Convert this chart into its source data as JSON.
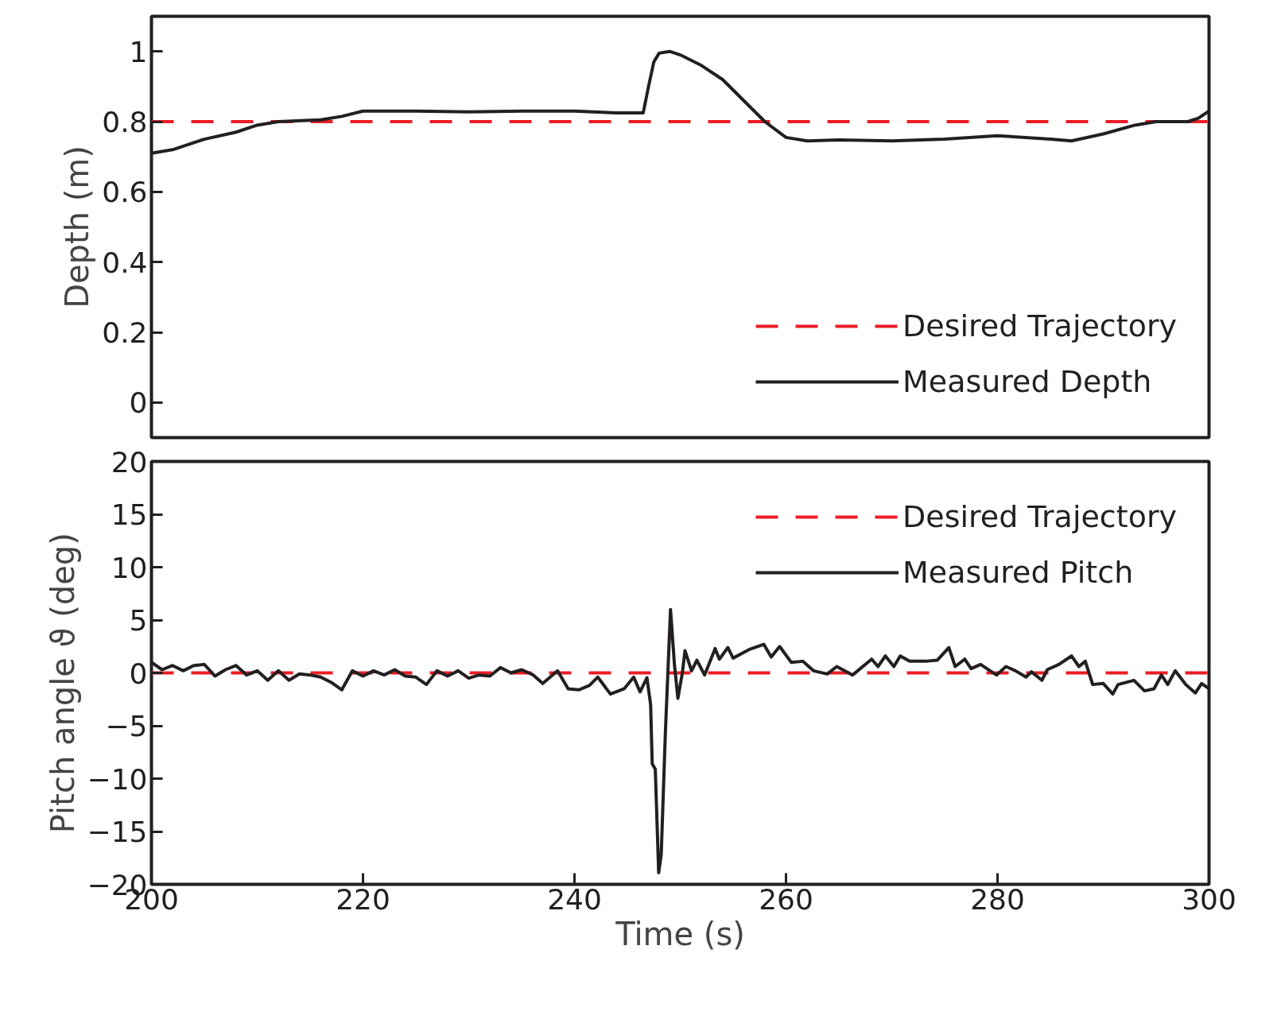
{
  "chart_data": [
    {
      "type": "line",
      "ylabel": "Depth (m)",
      "xlim": [
        200,
        300
      ],
      "ylim": [
        -0.1,
        1.1
      ],
      "yticks": [
        0,
        0.2,
        0.4,
        0.6,
        0.8,
        1
      ],
      "tick_labels": "y",
      "legend": "bottom right",
      "grid": false,
      "series": [
        {
          "name": "Desired Trajectory",
          "color": "#ed1c24",
          "line_style": "dashed",
          "x": [
            200,
            300
          ],
          "values": [
            0.8,
            0.8
          ]
        },
        {
          "name": "Measured Depth",
          "color": "#231f20",
          "line_style": "solid",
          "x": [
            200,
            202,
            205,
            208,
            210,
            212,
            216,
            218,
            220,
            225,
            230,
            235,
            240,
            244,
            246.5,
            247,
            247.5,
            248,
            249,
            250,
            252,
            254,
            256,
            258,
            260,
            262,
            265,
            270,
            275,
            280,
            285,
            287,
            290,
            293,
            295,
            298,
            299,
            300
          ],
          "values": [
            0.71,
            0.72,
            0.75,
            0.77,
            0.79,
            0.8,
            0.805,
            0.815,
            0.83,
            0.83,
            0.828,
            0.83,
            0.83,
            0.825,
            0.825,
            0.9,
            0.97,
            0.995,
            1.0,
            0.99,
            0.96,
            0.92,
            0.86,
            0.8,
            0.755,
            0.745,
            0.748,
            0.745,
            0.75,
            0.76,
            0.75,
            0.745,
            0.765,
            0.79,
            0.8,
            0.8,
            0.81,
            0.83
          ]
        }
      ]
    },
    {
      "type": "line",
      "xlabel": "Time (s)",
      "ylabel": "Pitch angle   ϑ (deg)",
      "xlim": [
        200,
        300
      ],
      "ylim": [
        -20,
        20
      ],
      "xticks": [
        200,
        220,
        240,
        260,
        280,
        300
      ],
      "yticks": [
        -20,
        -15,
        -10,
        -5,
        0,
        5,
        10,
        15,
        20
      ],
      "legend": "top right",
      "grid": false,
      "series": [
        {
          "name": "Desired Trajectory",
          "color": "#ed1c24",
          "line_style": "dashed",
          "x": [
            200,
            300
          ],
          "values": [
            0,
            0
          ]
        },
        {
          "name": "Measured Pitch",
          "color": "#231f20",
          "line_style": "solid",
          "x": [
            200,
            201,
            202,
            203,
            204,
            205,
            206,
            207,
            208,
            209,
            210,
            211,
            212,
            213,
            214,
            215,
            216,
            217,
            218,
            219,
            220,
            221,
            222,
            223,
            224,
            225,
            226,
            227,
            228,
            229,
            230,
            231,
            232,
            233,
            234,
            235,
            236.1,
            237,
            238.4,
            239.4,
            240.4,
            241.4,
            242.2,
            243.4,
            244.7,
            245.6,
            246.2,
            246.85,
            247.2,
            247.35,
            247.64,
            247.96,
            248.2,
            248.6,
            249.08,
            249.45,
            249.78,
            250.2,
            250.45,
            251.07,
            251.57,
            252.3,
            253.3,
            253.7,
            254.5,
            255.0,
            256.5,
            257.9,
            258.6,
            259.4,
            260.5,
            261.6,
            262.6,
            263.9,
            264.8,
            266.3,
            268.1,
            268.7,
            269.4,
            270.2,
            270.8,
            271.7,
            273.2,
            274.3,
            275.4,
            276.0,
            276.9,
            277.5,
            278.4,
            279.9,
            280.8,
            281.7,
            282.7,
            283.2,
            284.2,
            284.7,
            285.8,
            287.0,
            287.7,
            288.3,
            289.0,
            290.0,
            290.9,
            291.4,
            292.9,
            293.9,
            294.8,
            295.5,
            296.1,
            296.8,
            297.8,
            298.7,
            299.3,
            300
          ],
          "values": [
            1.0,
            0.3,
            0.7,
            0.2,
            0.7,
            0.8,
            -0.3,
            0.3,
            0.7,
            -0.2,
            0.2,
            -0.7,
            0.2,
            -0.7,
            -0.1,
            -0.2,
            -0.4,
            -0.9,
            -1.6,
            0.2,
            -0.3,
            0.2,
            -0.2,
            0.3,
            -0.3,
            -0.4,
            -1.1,
            0.2,
            -0.3,
            0.2,
            -0.5,
            -0.2,
            -0.3,
            0.5,
            0,
            0.3,
            -0.2,
            -1.0,
            0.2,
            -1.5,
            -1.6,
            -1.2,
            -0.4,
            -2.0,
            -1.5,
            -0.4,
            -1.8,
            -0.46,
            -3.0,
            -8.6,
            -9.1,
            -18.9,
            -17.2,
            -5.5,
            6.0,
            0.8,
            -2.4,
            0,
            2.1,
            0.2,
            1.2,
            -0.2,
            2.3,
            1.3,
            2.4,
            1.4,
            2.2,
            2.7,
            1.5,
            2.5,
            1.0,
            1.1,
            0.2,
            -0.1,
            0.6,
            -0.2,
            1.3,
            0.6,
            1.6,
            0.6,
            1.6,
            1.1,
            1.1,
            1.2,
            2.4,
            0.6,
            1.3,
            0.4,
            0.8,
            -0.2,
            0.6,
            0.2,
            -0.4,
            0.1,
            -0.7,
            0.3,
            0.8,
            1.6,
            0.6,
            1.1,
            -1.1,
            -1.0,
            -2.0,
            -1.1,
            -0.7,
            -1.7,
            -1.5,
            -0.2,
            -1.1,
            0.2,
            -1.1,
            -1.9,
            -1.0,
            -1.5
          ]
        }
      ]
    }
  ]
}
